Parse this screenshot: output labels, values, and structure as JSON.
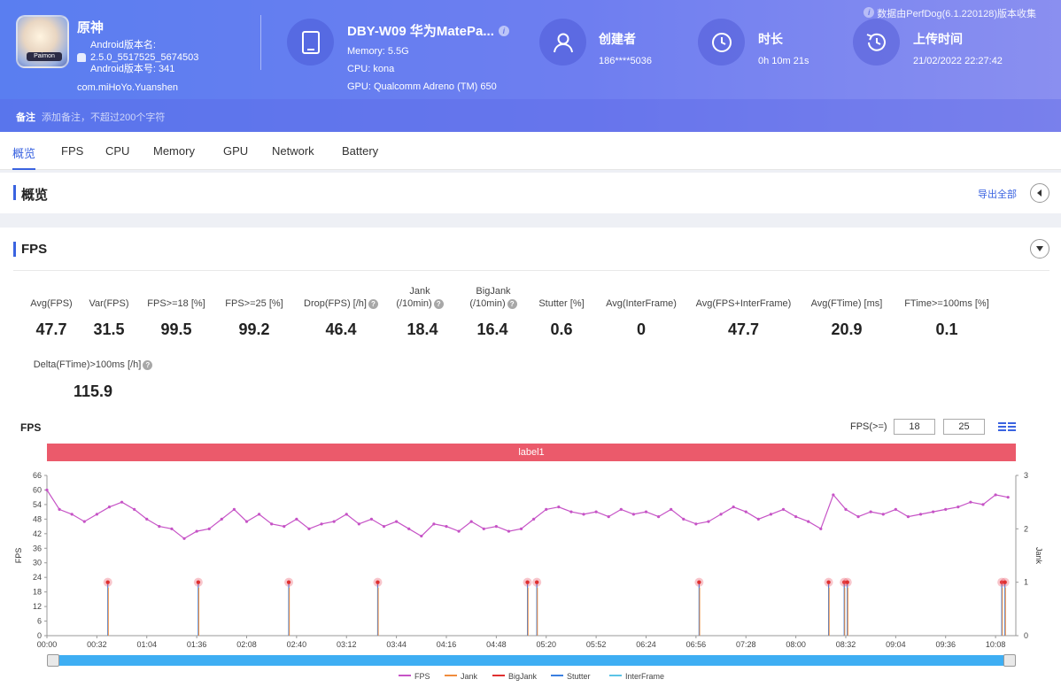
{
  "app": {
    "name": "原神",
    "version_name_label": "Android版本名:",
    "version_name": "2.5.0_5517525_5674503",
    "version_code_label": "Android版本号: 341",
    "package": "com.miHoYo.Yuanshen",
    "icon_tag": "Paimon"
  },
  "device": {
    "title": "DBY-W09 华为MatePa...",
    "memory": "Memory: 5.5G",
    "cpu": "CPU: kona",
    "gpu": "GPU: Qualcomm Adreno (TM) 650"
  },
  "creator": {
    "label": "创建者",
    "value": "186****5036"
  },
  "duration": {
    "label": "时长",
    "value": "0h 10m 21s"
  },
  "upload": {
    "label": "上传时间",
    "value": "21/02/2022 22:27:42"
  },
  "source_note": "数据由PerfDog(6.1.220128)版本收集",
  "note": {
    "label": "备注",
    "placeholder": "添加备注，不超过200个字符"
  },
  "tabs": [
    "概览",
    "FPS",
    "CPU",
    "Memory",
    "GPU",
    "Network",
    "Battery"
  ],
  "overview": {
    "title": "概览",
    "export_label": "导出全部"
  },
  "fps_section": {
    "title": "FPS"
  },
  "metrics": [
    {
      "label": "Avg(FPS)",
      "value": "47.7"
    },
    {
      "label": "Var(FPS)",
      "value": "31.5"
    },
    {
      "label": "FPS>=18 [%]",
      "value": "99.5"
    },
    {
      "label": "FPS>=25 [%]",
      "value": "99.2"
    },
    {
      "label": "Drop(FPS) [/h]",
      "value": "46.4"
    },
    {
      "label": "Jank (/10min)",
      "value": "18.4"
    },
    {
      "label": "BigJank (/10min)",
      "value": "16.4"
    },
    {
      "label": "Stutter [%]",
      "value": "0.6"
    },
    {
      "label": "Avg(InterFrame)",
      "value": "0"
    },
    {
      "label": "Avg(FPS+InterFrame)",
      "value": "47.7"
    },
    {
      "label": "Avg(FTime) [ms]",
      "value": "20.9"
    },
    {
      "label": "FTime>=100ms [%]",
      "value": "0.1"
    },
    {
      "label": "Delta(FTime)>100ms [/h]",
      "value": "115.9"
    }
  ],
  "metric_labels_split": {
    "jank_line1": "Jank",
    "jank_line2": "(/10min)",
    "bigjank_line1": "BigJank",
    "bigjank_line2": "(/10min)"
  },
  "chart_header": {
    "title": "FPS",
    "threshold_label": "FPS(>=)",
    "threshold_1": "18",
    "threshold_2": "25",
    "band_label": "label1"
  },
  "colors": {
    "fps": "#c653c6",
    "jank": "#f08c3c",
    "bigjank": "#e03030",
    "stutter": "#3a7fe0",
    "interframe": "#5bc4e6",
    "accent": "#3a63e0"
  },
  "chart_data": {
    "type": "line",
    "xlabel": "",
    "ylabel": "FPS",
    "y2label": "Jank",
    "ylim": [
      0,
      66
    ],
    "y2lim": [
      0,
      3
    ],
    "yticks": [
      "0",
      "6",
      "12",
      "18",
      "24",
      "30",
      "36",
      "42",
      "48",
      "54",
      "60",
      "66"
    ],
    "y2ticks": [
      "0",
      "1",
      "2",
      "3"
    ],
    "xticks": [
      "00:00",
      "00:32",
      "01:04",
      "01:36",
      "02:08",
      "02:40",
      "03:12",
      "03:44",
      "04:16",
      "04:48",
      "05:20",
      "05:52",
      "06:24",
      "06:56",
      "07:28",
      "08:00",
      "08:32",
      "09:04",
      "09:36",
      "10:08"
    ],
    "fps_series": [
      {
        "t": "00:00",
        "y": 60
      },
      {
        "t": "00:08",
        "y": 52
      },
      {
        "t": "00:16",
        "y": 50
      },
      {
        "t": "00:24",
        "y": 47
      },
      {
        "t": "00:32",
        "y": 50
      },
      {
        "t": "00:40",
        "y": 53
      },
      {
        "t": "00:48",
        "y": 55
      },
      {
        "t": "00:56",
        "y": 52
      },
      {
        "t": "01:04",
        "y": 48
      },
      {
        "t": "01:12",
        "y": 45
      },
      {
        "t": "01:20",
        "y": 44
      },
      {
        "t": "01:28",
        "y": 40
      },
      {
        "t": "01:36",
        "y": 43
      },
      {
        "t": "01:44",
        "y": 44
      },
      {
        "t": "01:52",
        "y": 48
      },
      {
        "t": "02:00",
        "y": 52
      },
      {
        "t": "02:08",
        "y": 47
      },
      {
        "t": "02:16",
        "y": 50
      },
      {
        "t": "02:24",
        "y": 46
      },
      {
        "t": "02:32",
        "y": 45
      },
      {
        "t": "02:40",
        "y": 48
      },
      {
        "t": "02:48",
        "y": 44
      },
      {
        "t": "02:56",
        "y": 46
      },
      {
        "t": "03:04",
        "y": 47
      },
      {
        "t": "03:12",
        "y": 50
      },
      {
        "t": "03:20",
        "y": 46
      },
      {
        "t": "03:28",
        "y": 48
      },
      {
        "t": "03:36",
        "y": 45
      },
      {
        "t": "03:44",
        "y": 47
      },
      {
        "t": "03:52",
        "y": 44
      },
      {
        "t": "04:00",
        "y": 41
      },
      {
        "t": "04:08",
        "y": 46
      },
      {
        "t": "04:16",
        "y": 45
      },
      {
        "t": "04:24",
        "y": 43
      },
      {
        "t": "04:32",
        "y": 47
      },
      {
        "t": "04:40",
        "y": 44
      },
      {
        "t": "04:48",
        "y": 45
      },
      {
        "t": "04:56",
        "y": 43
      },
      {
        "t": "05:04",
        "y": 44
      },
      {
        "t": "05:12",
        "y": 48
      },
      {
        "t": "05:20",
        "y": 52
      },
      {
        "t": "05:28",
        "y": 53
      },
      {
        "t": "05:36",
        "y": 51
      },
      {
        "t": "05:44",
        "y": 50
      },
      {
        "t": "05:52",
        "y": 51
      },
      {
        "t": "06:00",
        "y": 49
      },
      {
        "t": "06:08",
        "y": 52
      },
      {
        "t": "06:16",
        "y": 50
      },
      {
        "t": "06:24",
        "y": 51
      },
      {
        "t": "06:32",
        "y": 49
      },
      {
        "t": "06:40",
        "y": 52
      },
      {
        "t": "06:48",
        "y": 48
      },
      {
        "t": "06:56",
        "y": 46
      },
      {
        "t": "07:04",
        "y": 47
      },
      {
        "t": "07:12",
        "y": 50
      },
      {
        "t": "07:20",
        "y": 53
      },
      {
        "t": "07:28",
        "y": 51
      },
      {
        "t": "07:36",
        "y": 48
      },
      {
        "t": "07:44",
        "y": 50
      },
      {
        "t": "07:52",
        "y": 52
      },
      {
        "t": "08:00",
        "y": 49
      },
      {
        "t": "08:08",
        "y": 47
      },
      {
        "t": "08:16",
        "y": 44
      },
      {
        "t": "08:24",
        "y": 58
      },
      {
        "t": "08:32",
        "y": 52
      },
      {
        "t": "08:40",
        "y": 49
      },
      {
        "t": "08:48",
        "y": 51
      },
      {
        "t": "08:56",
        "y": 50
      },
      {
        "t": "09:04",
        "y": 52
      },
      {
        "t": "09:12",
        "y": 49
      },
      {
        "t": "09:20",
        "y": 50
      },
      {
        "t": "09:28",
        "y": 51
      },
      {
        "t": "09:36",
        "y": 52
      },
      {
        "t": "09:44",
        "y": 53
      },
      {
        "t": "09:52",
        "y": 55
      },
      {
        "t": "10:00",
        "y": 54
      },
      {
        "t": "10:08",
        "y": 58
      },
      {
        "t": "10:16",
        "y": 57
      }
    ],
    "jank_events": [
      "00:39",
      "01:37",
      "02:35",
      "03:32",
      "05:08",
      "05:14",
      "06:58",
      "08:21",
      "08:31",
      "08:33",
      "10:12",
      "10:14"
    ],
    "jank_event_value": 1,
    "legend": [
      {
        "name": "FPS",
        "color": "#c653c6"
      },
      {
        "name": "Jank",
        "color": "#f08c3c"
      },
      {
        "name": "BigJank",
        "color": "#e03030"
      },
      {
        "name": "Stutter",
        "color": "#3a7fe0"
      },
      {
        "name": "InterFrame",
        "color": "#5bc4e6"
      }
    ]
  }
}
